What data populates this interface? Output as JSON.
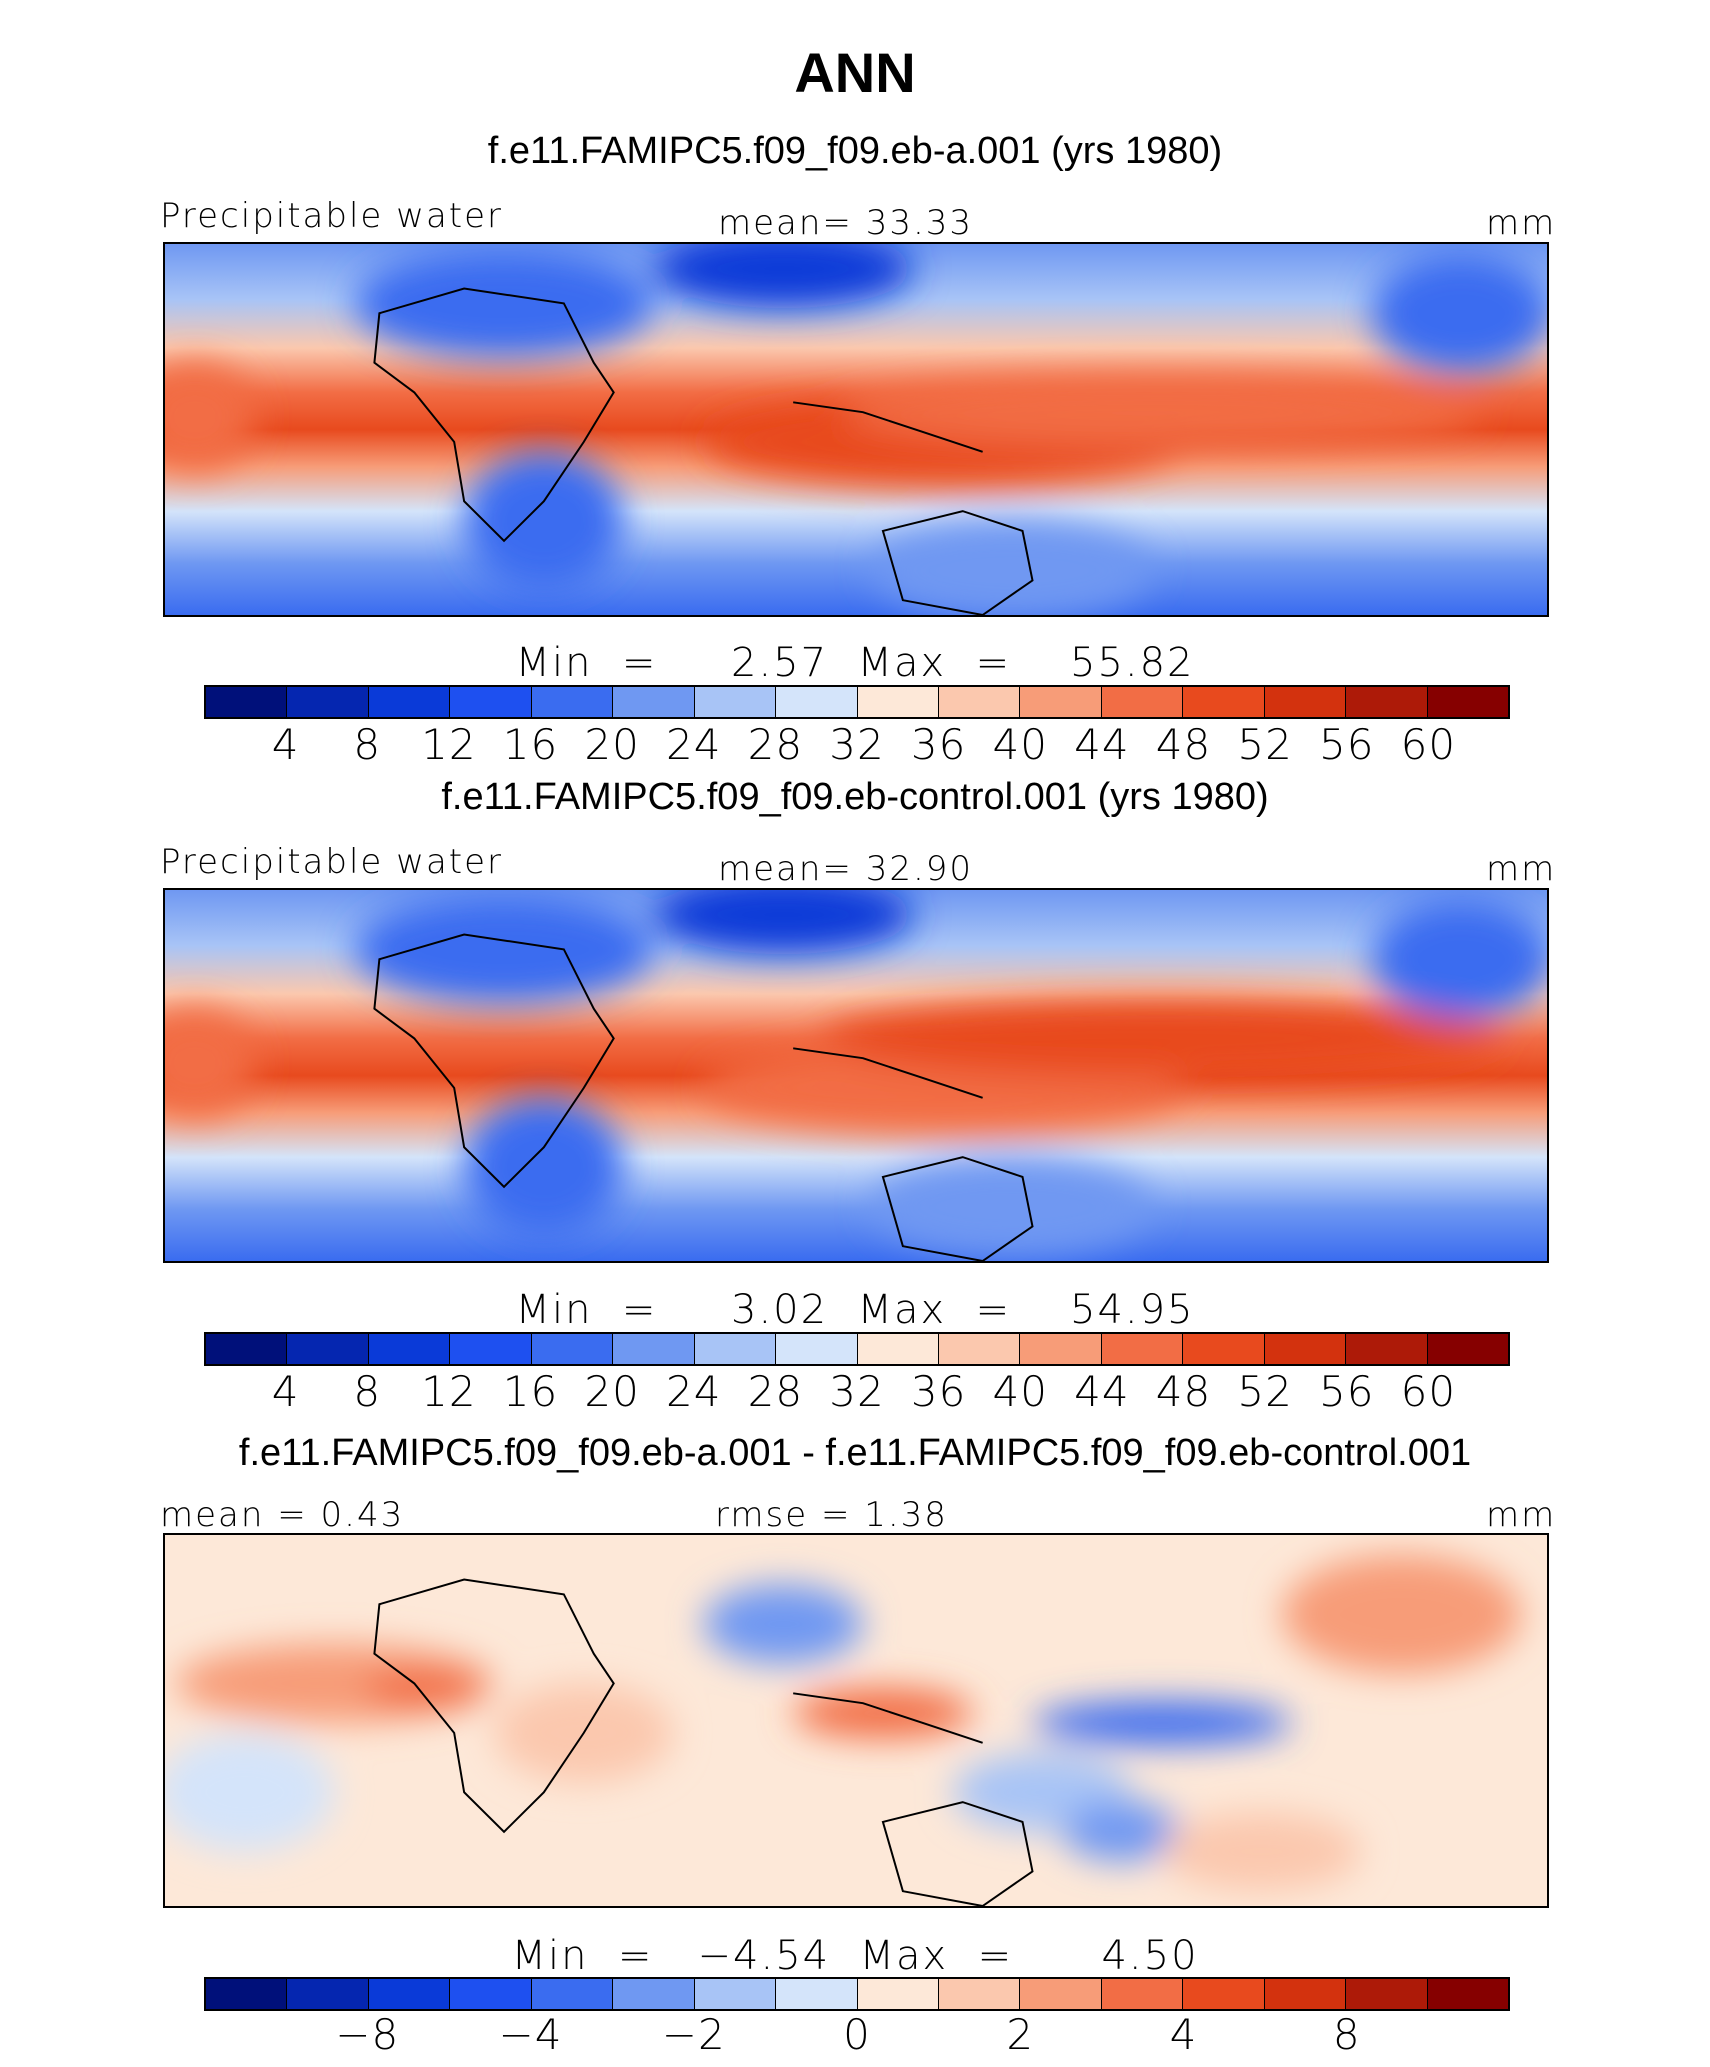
{
  "page": {
    "title": "ANN"
  },
  "palette": [
    "#00107a",
    "#0526b0",
    "#0a3ad8",
    "#1e50f0",
    "#3a6cf0",
    "#6f98f2",
    "#a8c4f6",
    "#d4e4fa",
    "#fde8d8",
    "#fbc8ae",
    "#f79c78",
    "#f26d45",
    "#e84a1e",
    "#d3320e",
    "#ad1a08",
    "#860000"
  ],
  "panels": [
    {
      "case_title": "f.e11.FAMIPC5.f09_f09.eb-a.001 (yrs 1980)",
      "left_label": "Precipitable  water",
      "mean_label": "mean=   33.33",
      "units": "mm",
      "minmax": "Min  =     2.57  Max  =    55.82",
      "ticks": [
        "4",
        "8",
        "12",
        "16",
        "20",
        "24",
        "28",
        "32",
        "36",
        "40",
        "44",
        "48",
        "52",
        "56",
        "60"
      ]
    },
    {
      "case_title": "f.e11.FAMIPC5.f09_f09.eb-control.001 (yrs 1980)",
      "left_label": "Precipitable  water",
      "mean_label": "mean=   32.90",
      "units": "mm",
      "minmax": "Min  =     3.02  Max  =    54.95",
      "ticks": [
        "4",
        "8",
        "12",
        "16",
        "20",
        "24",
        "28",
        "32",
        "36",
        "40",
        "44",
        "48",
        "52",
        "56",
        "60"
      ]
    },
    {
      "case_title": "f.e11.FAMIPC5.f09_f09.eb-a.001 - f.e11.FAMIPC5.f09_f09.eb-control.001",
      "left_label": "mean  =     0.43",
      "mean_label": "rmse  =      1.38",
      "units": "mm",
      "minmax": "Min  =   −4.54  Max  =      4.50",
      "ticks": [
        "−8",
        "−4",
        "−2",
        "0",
        "2",
        "4",
        "8"
      ]
    }
  ],
  "chart_data": [
    {
      "type": "heatmap",
      "title": "f.e11.FAMIPC5.f09_f09.eb-a.001 (yrs 1980)",
      "variable": "Precipitable  water",
      "units": "mm",
      "mean": 33.33,
      "min": 2.57,
      "max": 55.82,
      "contour_levels": [
        4,
        8,
        12,
        16,
        20,
        24,
        28,
        32,
        36,
        40,
        44,
        48,
        52,
        56,
        60
      ]
    },
    {
      "type": "heatmap",
      "title": "f.e11.FAMIPC5.f09_f09.eb-control.001 (yrs 1980)",
      "variable": "Precipitable  water",
      "units": "mm",
      "mean": 32.9,
      "min": 3.02,
      "max": 54.95,
      "contour_levels": [
        4,
        8,
        12,
        16,
        20,
        24,
        28,
        32,
        36,
        40,
        44,
        48,
        52,
        56,
        60
      ]
    },
    {
      "type": "heatmap",
      "title": "f.e11.FAMIPC5.f09_f09.eb-a.001 - f.e11.FAMIPC5.f09_f09.eb-control.001",
      "units": "mm",
      "mean": 0.43,
      "rmse": 1.38,
      "min": -4.54,
      "max": 4.5,
      "contour_levels": [
        -8,
        -4,
        -2,
        0,
        2,
        4,
        8
      ]
    }
  ]
}
